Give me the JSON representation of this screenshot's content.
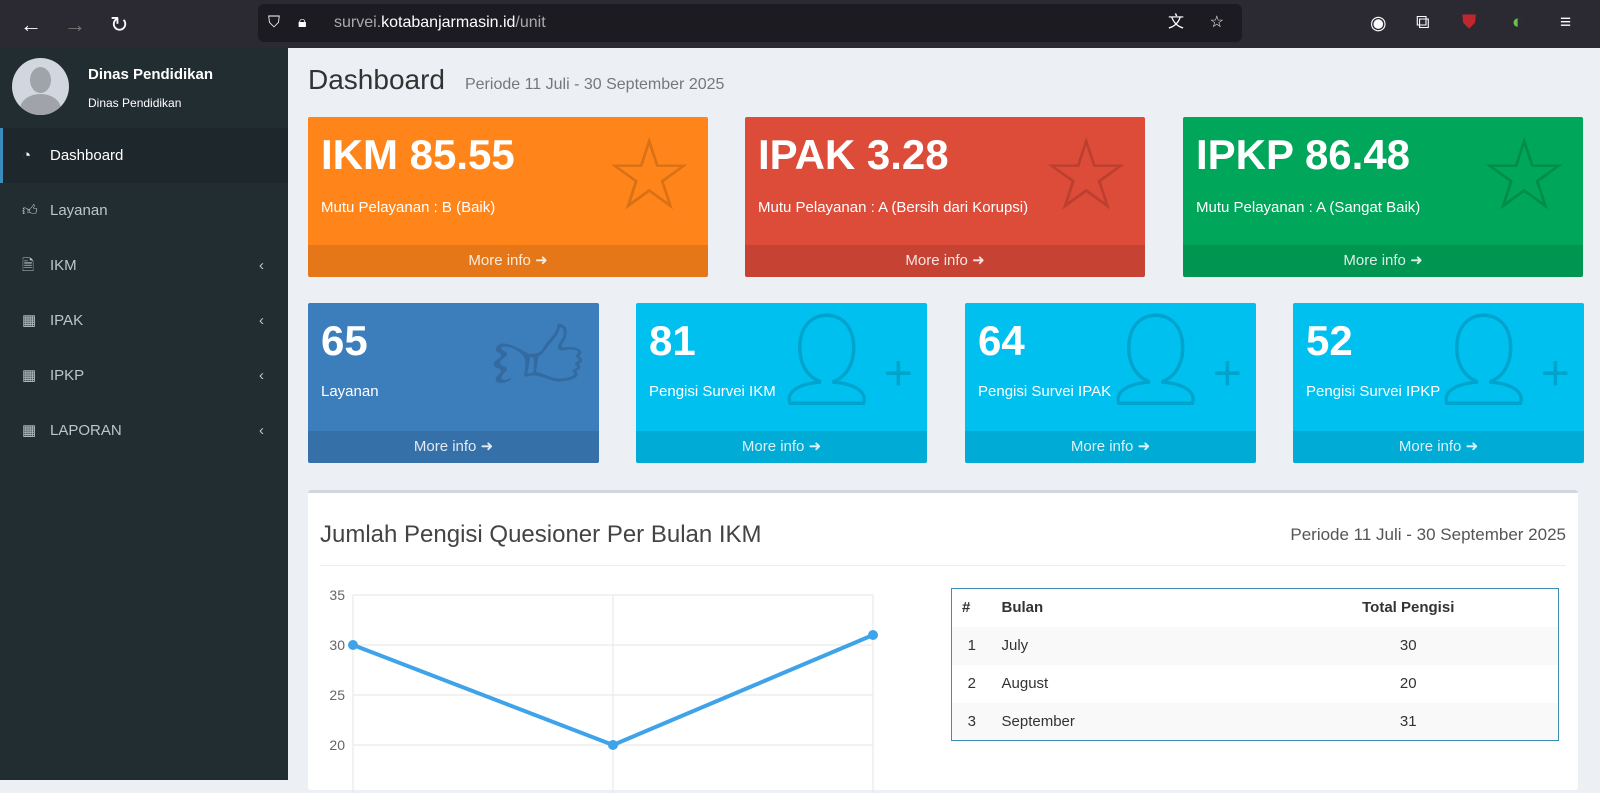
{
  "browser": {
    "url_prefix": "survei.",
    "url_domain": "kotabanjarmasin.id",
    "url_path": "/unit"
  },
  "user": {
    "name": "Dinas Pendidikan",
    "unit": "Dinas Pendidikan"
  },
  "sidebar": {
    "items": [
      {
        "label": "Dashboard",
        "icon": "dashboard-icon"
      },
      {
        "label": "Layanan",
        "icon": "thumbs-up-icon"
      },
      {
        "label": "IKM",
        "icon": "file-icon"
      },
      {
        "label": "IPAK",
        "icon": "table-icon"
      },
      {
        "label": "IPKP",
        "icon": "table-icon"
      },
      {
        "label": "LAPORAN",
        "icon": "table-icon"
      }
    ]
  },
  "header": {
    "title": "Dashboard",
    "period": "Periode 11 Juli - 30 September 2025"
  },
  "top_boxes": [
    {
      "value": "IKM 85.55",
      "label": "Mutu Pelayanan : B (Baik)",
      "more": "More info",
      "color": "#ff851b"
    },
    {
      "value": "IPAK 3.28",
      "label": "Mutu Pelayanan : A (Bersih dari Korupsi)",
      "more": "More info",
      "color": "#dd4b39"
    },
    {
      "value": "IPKP 86.48",
      "label": "Mutu Pelayanan : A (Sangat Baik)",
      "more": "More info",
      "color": "#00a65a"
    }
  ],
  "small_boxes": [
    {
      "value": "65",
      "label": "Layanan",
      "more": "More info",
      "color": "#3c7dbc"
    },
    {
      "value": "81",
      "label": "Pengisi Survei IKM",
      "more": "More info",
      "color": "#00c0ef"
    },
    {
      "value": "64",
      "label": "Pengisi Survei IPAK",
      "more": "More info",
      "color": "#00c0ef"
    },
    {
      "value": "52",
      "label": "Pengisi Survei IPKP",
      "more": "More info",
      "color": "#00c0ef"
    }
  ],
  "panel": {
    "title": "Jumlah Pengisi Quesioner Per Bulan IKM",
    "period": "Periode 11 Juli - 30 September 2025"
  },
  "table": {
    "headers": [
      "#",
      "Bulan",
      "Total Pengisi"
    ],
    "rows": [
      [
        "1",
        "July",
        "30"
      ],
      [
        "2",
        "August",
        "20"
      ],
      [
        "3",
        "September",
        "31"
      ]
    ]
  },
  "chart_data": {
    "type": "line",
    "categories": [
      "July",
      "August",
      "September"
    ],
    "values": [
      30,
      20,
      31
    ],
    "yticks": [
      20,
      25,
      30,
      35
    ],
    "grid": true,
    "color": "#3ea3e8"
  }
}
